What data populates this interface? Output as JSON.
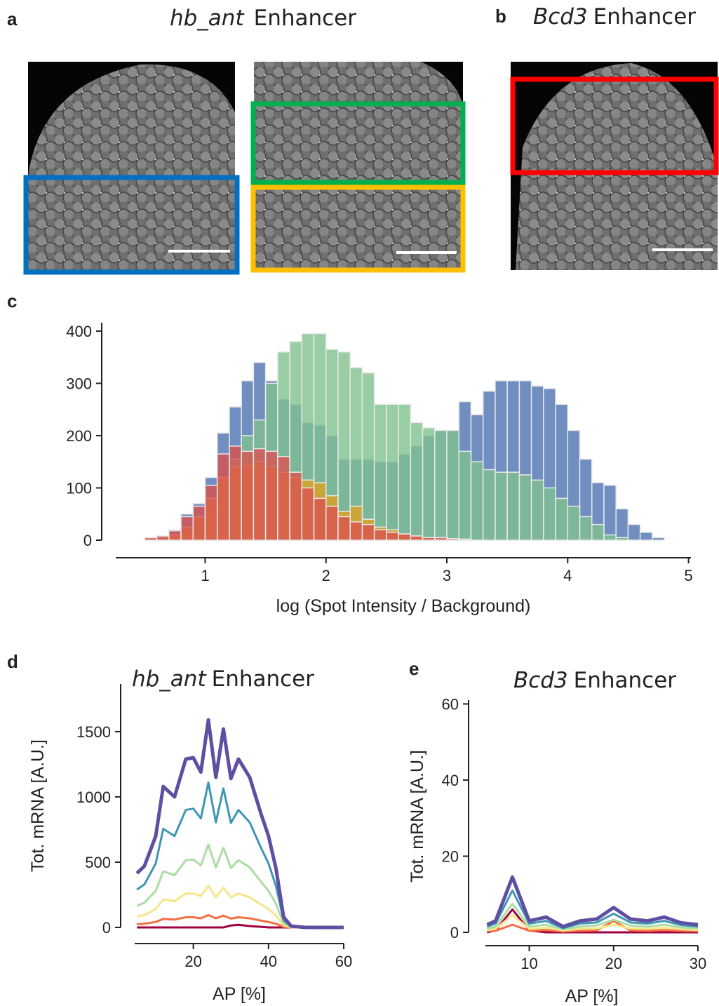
{
  "panels": {
    "a": {
      "label": "a",
      "title_gene": "hb_ant",
      "title": "Enhancer"
    },
    "b": {
      "label": "b",
      "title_gene": "Bcd3",
      "title": "Enhancer"
    }
  },
  "chart_data": [
    {
      "type": "histogram",
      "label": "c",
      "x_label": "log (Spot Intensity / Background)",
      "bins": [
        0.5,
        0.6,
        0.7,
        0.8,
        0.9,
        1.0,
        1.1,
        1.2,
        1.3,
        1.4,
        1.5,
        1.6,
        1.7,
        1.8,
        1.9,
        2.0,
        2.1,
        2.2,
        2.3,
        2.4,
        2.5,
        2.6,
        2.7,
        2.8,
        2.9,
        3.0,
        3.1,
        3.2,
        3.3,
        3.4,
        3.5,
        3.6,
        3.7,
        3.8,
        3.9,
        4.0,
        4.1,
        4.2,
        4.3,
        4.4,
        4.5,
        4.6,
        4.7,
        4.8
      ],
      "series": [
        {
          "color": "#4c72b0",
          "values": [
            5,
            8,
            20,
            50,
            70,
            120,
            205,
            255,
            305,
            340,
            305,
            270,
            260,
            225,
            220,
            200,
            155,
            155,
            155,
            150,
            150,
            165,
            180,
            200,
            210,
            210,
            265,
            240,
            285,
            305,
            305,
            305,
            295,
            290,
            260,
            210,
            155,
            110,
            105,
            60,
            30,
            15,
            5
          ]
        },
        {
          "color": "#7fc28e",
          "values": [
            0,
            0,
            5,
            15,
            30,
            60,
            110,
            155,
            200,
            230,
            300,
            360,
            380,
            395,
            395,
            365,
            360,
            330,
            320,
            260,
            260,
            260,
            225,
            215,
            210,
            210,
            170,
            150,
            135,
            130,
            130,
            125,
            115,
            100,
            80,
            65,
            45,
            30,
            10,
            5,
            0,
            0,
            0
          ]
        },
        {
          "color": "#dda020",
          "values": [
            3,
            5,
            10,
            25,
            45,
            80,
            120,
            140,
            145,
            150,
            140,
            130,
            120,
            115,
            110,
            85,
            55,
            65,
            40,
            25,
            20,
            12,
            8,
            5,
            3,
            2,
            1,
            0,
            0,
            0,
            0,
            0,
            0,
            0,
            0,
            0,
            0,
            0,
            0,
            0,
            0,
            0,
            0
          ]
        },
        {
          "color": "#d9534f",
          "values": [
            5,
            8,
            18,
            45,
            65,
            105,
            165,
            180,
            170,
            175,
            170,
            160,
            130,
            100,
            80,
            65,
            45,
            35,
            30,
            20,
            15,
            12,
            8,
            5,
            5,
            3,
            2,
            0,
            0,
            0,
            0,
            0,
            0,
            0,
            0,
            0,
            0,
            0,
            0,
            0,
            0,
            0,
            0
          ]
        }
      ],
      "xlim": [
        0.26,
        5.02
      ],
      "xticks": [
        1,
        2,
        3,
        4,
        5
      ],
      "ylim": [
        0,
        416
      ],
      "yticks": [
        0,
        100,
        200,
        300,
        400
      ]
    },
    {
      "type": "line",
      "label": "d",
      "title_gene": "hb_ant",
      "title": "Enhancer",
      "x_label": "AP [%]",
      "y_label": "Tot. mRNA [A.U.]",
      "x": [
        5,
        7,
        10,
        12,
        15,
        18,
        20,
        22,
        24,
        26,
        28,
        30,
        32,
        35,
        38,
        40,
        42,
        44,
        46,
        50,
        55,
        60
      ],
      "series": [
        {
          "color": "#9e0142",
          "values": [
            0,
            0,
            0,
            0,
            0,
            0,
            0,
            0,
            0,
            0,
            0,
            15,
            20,
            10,
            5,
            0,
            0,
            0,
            0,
            0,
            0,
            0
          ]
        },
        {
          "color": "#f46d43",
          "values": [
            25,
            28,
            42,
            65,
            60,
            78,
            78,
            70,
            95,
            70,
            90,
            68,
            78,
            70,
            52,
            42,
            28,
            5,
            0,
            0,
            0,
            0
          ]
        },
        {
          "color": "#f5e68a",
          "values": [
            85,
            95,
            140,
            215,
            200,
            260,
            260,
            240,
            320,
            230,
            305,
            230,
            260,
            230,
            175,
            140,
            90,
            15,
            2,
            0,
            0,
            0
          ]
        },
        {
          "color": "#abdda4",
          "values": [
            165,
            190,
            280,
            430,
            400,
            515,
            520,
            475,
            635,
            460,
            610,
            455,
            515,
            460,
            350,
            280,
            180,
            30,
            4,
            0,
            0,
            0
          ]
        },
        {
          "color": "#3f96b4",
          "values": [
            290,
            330,
            490,
            755,
            700,
            900,
            910,
            835,
            1110,
            805,
            1065,
            800,
            900,
            805,
            610,
            490,
            315,
            55,
            7,
            0,
            0,
            0
          ]
        },
        {
          "color": "#5e4fa2",
          "values": [
            415,
            470,
            700,
            1080,
            1000,
            1290,
            1300,
            1190,
            1590,
            1150,
            1520,
            1140,
            1290,
            1150,
            870,
            700,
            450,
            80,
            10,
            0,
            0,
            0
          ]
        }
      ],
      "xlim": [
        4.4,
        60
      ],
      "xticks": [
        20,
        40,
        60
      ],
      "ylim": [
        0,
        1865
      ],
      "yticks": [
        0,
        500,
        1000,
        1500
      ]
    },
    {
      "type": "line",
      "label": "e",
      "title_gene": "Bcd3",
      "title": "Enhancer",
      "x_label": "AP [%]",
      "y_label": "Tot. mRNA [A.U.]",
      "x": [
        5,
        6,
        8,
        10,
        12,
        14,
        16,
        18,
        20,
        22,
        24,
        26,
        28,
        30
      ],
      "series": [
        {
          "color": "#9e0142",
          "values": [
            0,
            0.5,
            6,
            0.5,
            0,
            0,
            0,
            0,
            0,
            0,
            0,
            0,
            0,
            0
          ]
        },
        {
          "color": "#f46d43",
          "values": [
            0.3,
            0.4,
            2,
            0.4,
            0.6,
            0.2,
            0.4,
            0.5,
            3,
            0.5,
            0.4,
            0.6,
            0.4,
            0.3
          ]
        },
        {
          "color": "#f5e68a",
          "values": [
            0.6,
            0.9,
            4.5,
            0.9,
            1.2,
            0.5,
            0.9,
            1,
            2,
            1,
            0.9,
            1.2,
            0.8,
            0.6
          ]
        },
        {
          "color": "#abdda4",
          "values": [
            1,
            1.5,
            7.5,
            1.5,
            2,
            0.8,
            1.5,
            1.8,
            3.3,
            1.8,
            1.5,
            2,
            1.3,
            1
          ]
        },
        {
          "color": "#3f96b4",
          "values": [
            1.5,
            2.3,
            11,
            2.3,
            3,
            1.1,
            2.3,
            2.6,
            4.9,
            2.6,
            2.3,
            3,
            1.9,
            1.5
          ]
        },
        {
          "color": "#5e4fa2",
          "values": [
            2,
            3,
            14.5,
            3,
            4,
            1.5,
            3,
            3.5,
            6.5,
            3.5,
            3,
            4,
            2.5,
            2
          ]
        }
      ],
      "xlim": [
        4.8,
        30
      ],
      "xticks": [
        10,
        20,
        30
      ],
      "ylim": [
        0,
        61
      ],
      "yticks": [
        0,
        20,
        40,
        60
      ]
    }
  ]
}
